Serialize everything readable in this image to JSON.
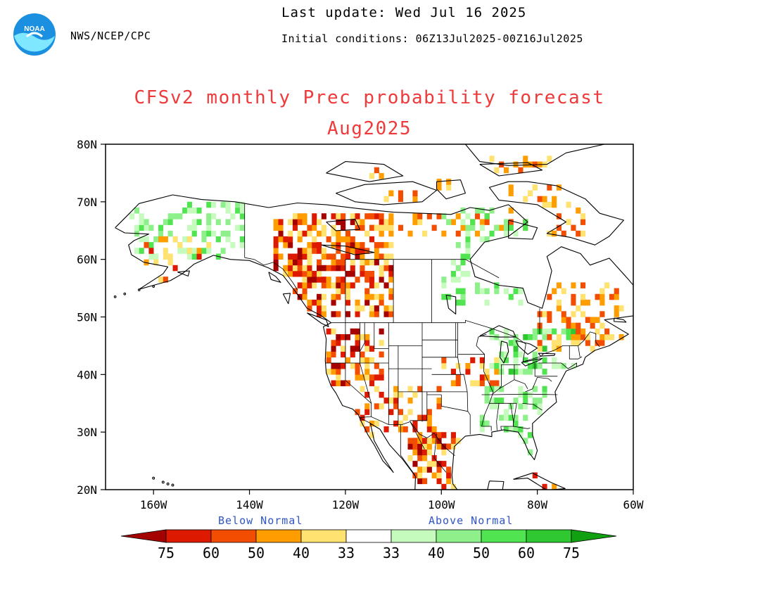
{
  "header": {
    "agency": "NWS/NCEP/CPC",
    "last_update": "Last update: Wed Jul 16 2025",
    "initial_conditions": "Initial conditions: 06Z13Jul2025-00Z16Jul2025",
    "logo_text": "NOAA"
  },
  "title": {
    "line1": "CFSv2 monthly Prec probability forecast",
    "line2": "Aug2025"
  },
  "axes": {
    "lat_labels": [
      "80N",
      "70N",
      "60N",
      "50N",
      "40N",
      "30N",
      "20N"
    ],
    "lat_values": [
      80,
      70,
      60,
      50,
      40,
      30,
      20
    ],
    "lon_labels": [
      "160W",
      "140W",
      "120W",
      "100W",
      "80W",
      "60W"
    ],
    "lon_values": [
      -160,
      -140,
      -120,
      -100,
      -80,
      -60
    ],
    "lon_range": [
      -170,
      -60
    ],
    "lat_range": [
      20,
      80
    ]
  },
  "legend": {
    "below_label": "Below Normal",
    "above_label": "Above Normal",
    "below_ticks": [
      "75",
      "60",
      "50",
      "40",
      "33"
    ],
    "above_ticks": [
      "33",
      "40",
      "50",
      "60",
      "75"
    ],
    "below_colors": [
      "#a50000",
      "#dd1a00",
      "#f24d00",
      "#ff9d00",
      "#ffe270"
    ],
    "above_colors": [
      "#c6fbbe",
      "#8ef08a",
      "#50e450",
      "#30c830",
      "#10a010"
    ]
  },
  "regions": [
    {
      "name": "alaska-interior",
      "lon": [
        -165,
        -141
      ],
      "lat": [
        60,
        70
      ],
      "category": "above_40",
      "density": 0.35
    },
    {
      "name": "alaska-southwest",
      "lon": [
        -162,
        -148
      ],
      "lat": [
        56,
        64
      ],
      "category": "below_50",
      "density": 0.3
    },
    {
      "name": "northwest-canada",
      "lon": [
        -135,
        -110
      ],
      "lat": [
        50,
        68
      ],
      "category": "below_60",
      "density": 0.55
    },
    {
      "name": "pacific-northwest",
      "lon": [
        -124,
        -112
      ],
      "lat": [
        38,
        48
      ],
      "category": "below_60",
      "density": 0.5
    },
    {
      "name": "southwest-us",
      "lon": [
        -118,
        -100
      ],
      "lat": [
        28,
        38
      ],
      "category": "below_50",
      "density": 0.35
    },
    {
      "name": "mexico",
      "lon": [
        -108,
        -96
      ],
      "lat": [
        20,
        30
      ],
      "category": "below_60",
      "density": 0.45
    },
    {
      "name": "central-plains",
      "lon": [
        -100,
        -88
      ],
      "lat": [
        38,
        43
      ],
      "category": "below_50",
      "density": 0.35
    },
    {
      "name": "southeast-us",
      "lon": [
        -92,
        -78
      ],
      "lat": [
        26,
        38
      ],
      "category": "above_40",
      "density": 0.4
    },
    {
      "name": "great-lakes",
      "lon": [
        -90,
        -72
      ],
      "lat": [
        40,
        48
      ],
      "category": "above_50",
      "density": 0.45
    },
    {
      "name": "eastern-canada",
      "lon": [
        -80,
        -62
      ],
      "lat": [
        44,
        56
      ],
      "category": "below_40",
      "density": 0.35
    },
    {
      "name": "arctic-canada",
      "lon": [
        -115,
        -70
      ],
      "lat": [
        64,
        78
      ],
      "category": "below_40",
      "density": 0.25
    },
    {
      "name": "hudson-region",
      "lon": [
        -100,
        -82
      ],
      "lat": [
        52,
        70
      ],
      "category": "above_40",
      "density": 0.3
    },
    {
      "name": "caribbean",
      "lon": [
        -85,
        -75
      ],
      "lat": [
        19,
        23
      ],
      "category": "below_50",
      "density": 0.4
    }
  ]
}
